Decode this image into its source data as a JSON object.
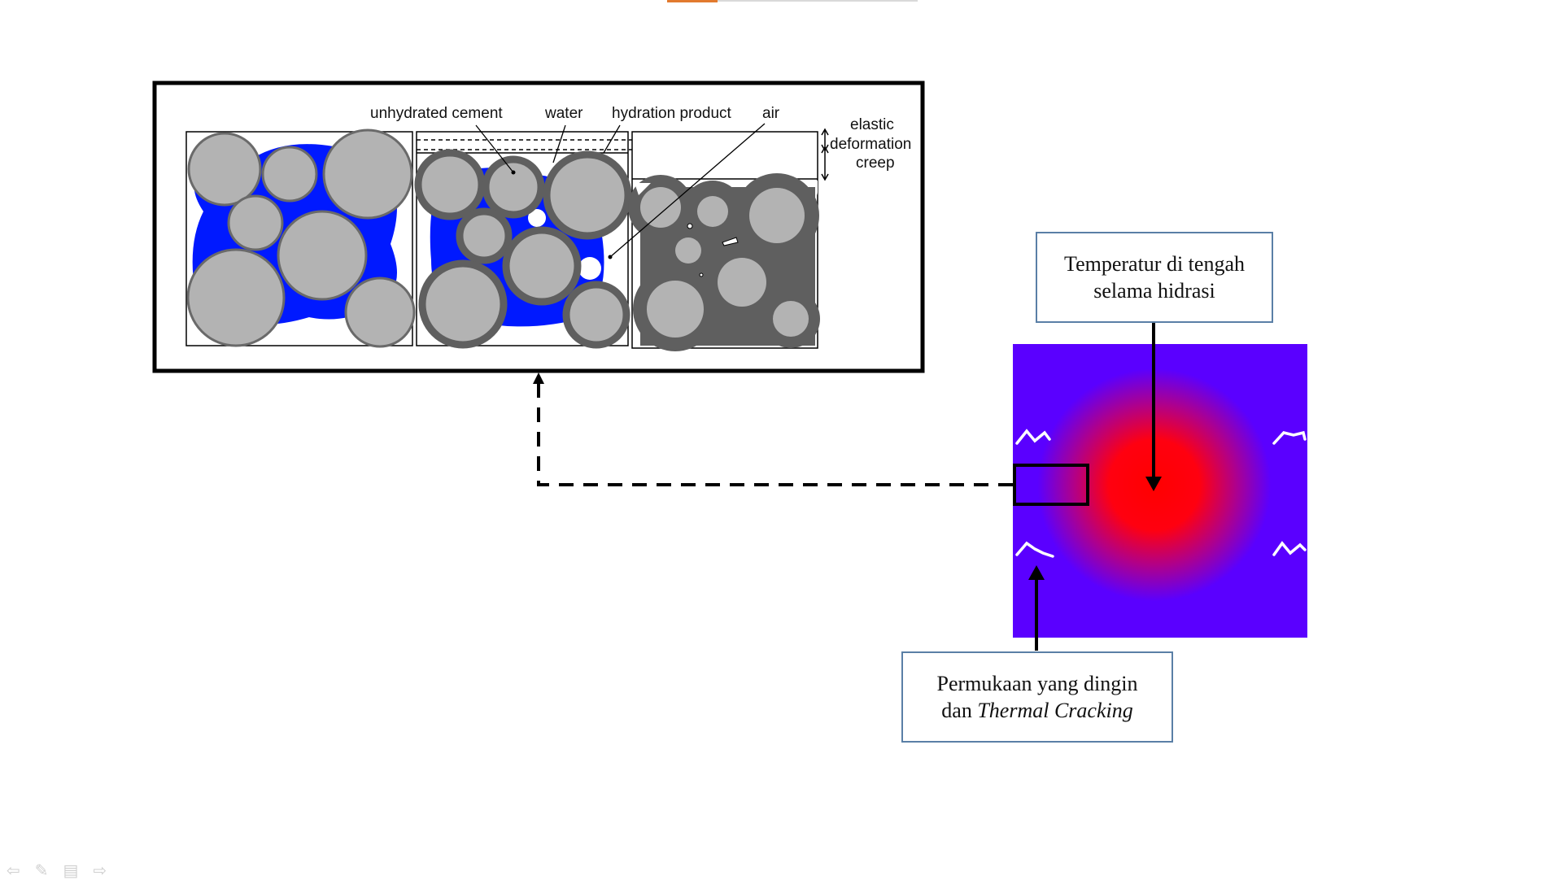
{
  "microstructure": {
    "labels": {
      "unhydrated_cement": "unhydrated cement",
      "water": "water",
      "hydration_product": "hydration product",
      "air": "air",
      "elastic": "elastic",
      "deformation": "deformation",
      "creep": "creep"
    },
    "colors": {
      "water": "#0019ff",
      "cement": "#b3b3b3",
      "product": "#5f5f5f"
    }
  },
  "callouts": {
    "center_temperature": {
      "line1": "Temperatur di tengah",
      "line2": "selama hidrasi"
    },
    "surface": {
      "line1": "Permukaan yang dingin",
      "line2_prefix": "dan ",
      "line2_italic": "Thermal Cracking"
    }
  },
  "heatmap_colors": {
    "hot": "#ff0000",
    "cold": "#5a00ff"
  },
  "nav_icons": [
    "back-arrow-icon",
    "pen-icon",
    "menu-icon",
    "forward-arrow-icon"
  ]
}
